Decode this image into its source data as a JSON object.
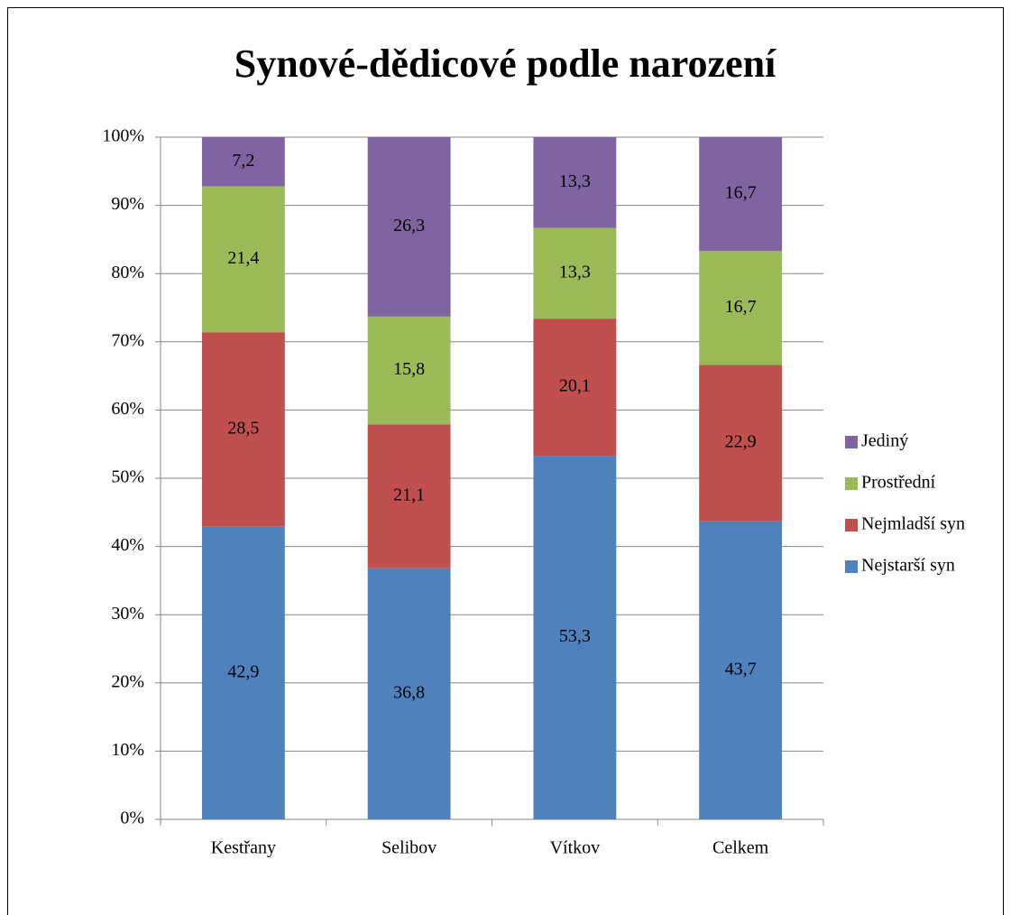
{
  "chart_data": {
    "type": "stacked_bar",
    "title": "Synové-dědicové podle narození",
    "categories": [
      "Kestřany",
      "Selibov",
      "Vítkov",
      "Celkem"
    ],
    "series": [
      {
        "name": "Nejstarší syn",
        "color": "#4f81bd",
        "values": [
          42.9,
          36.8,
          53.3,
          43.7
        ],
        "value_labels": [
          "42,9",
          "36,8",
          "53,3",
          "43,7"
        ]
      },
      {
        "name": "Nejmladší syn",
        "color": "#c0504d",
        "values": [
          28.5,
          21.1,
          20.1,
          22.9
        ],
        "value_labels": [
          "28,5",
          "21,1",
          "20,1",
          "22,9"
        ]
      },
      {
        "name": "Prostřední",
        "color": "#9bbb59",
        "values": [
          21.4,
          15.8,
          13.3,
          16.7
        ],
        "value_labels": [
          "21,4",
          "15,8",
          "13,3",
          "16,7"
        ]
      },
      {
        "name": "Jediný",
        "color": "#8064a2",
        "values": [
          7.2,
          26.3,
          13.3,
          16.7
        ],
        "value_labels": [
          "7,2",
          "26,3",
          "13,3",
          "16,7"
        ]
      }
    ],
    "ylim": [
      0,
      100
    ],
    "yticks": [
      {
        "value": 0,
        "label": "0%"
      },
      {
        "value": 10,
        "label": "10%"
      },
      {
        "value": 20,
        "label": "20%"
      },
      {
        "value": 30,
        "label": "30%"
      },
      {
        "value": 40,
        "label": "40%"
      },
      {
        "value": 50,
        "label": "50%"
      },
      {
        "value": 60,
        "label": "60%"
      },
      {
        "value": 70,
        "label": "70%"
      },
      {
        "value": 80,
        "label": "80%"
      },
      {
        "value": 90,
        "label": "90%"
      },
      {
        "value": 100,
        "label": "100%"
      }
    ],
    "grid": true,
    "legend": "right"
  }
}
